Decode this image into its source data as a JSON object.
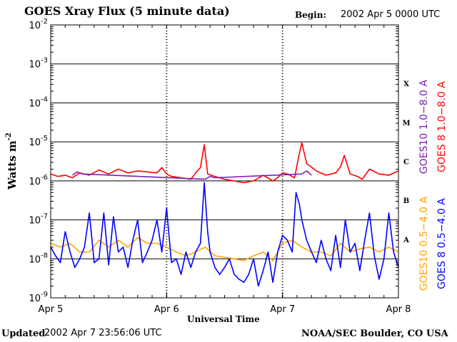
{
  "header": {
    "title": "GOES Xray Flux (5 minute data)",
    "begin_label": "Begin:",
    "begin_value": "2002 Apr 5 0000 UTC"
  },
  "footer": {
    "updated_label": "Updated",
    "updated_value": "2002 Apr  7 23:56:06 UTC",
    "credit": "NOAA/SEC Boulder, CO USA"
  },
  "colors": {
    "goes8_long": "#ff0000",
    "goes10_long": "#7a1fb0",
    "goes10_short": "#ffa500",
    "goes8_short": "#0000ff",
    "gridline": "#000000"
  },
  "chart_data": {
    "type": "line",
    "title": "GOES Xray Flux (5 minute data)",
    "xlabel": "Universal Time",
    "ylabel": "Watts m",
    "ylabel_exponent": "-2",
    "y_scale": "log",
    "ylim": [
      1e-09,
      0.01
    ],
    "y_ticks": [
      {
        "base": "10",
        "exp": "-2",
        "value": 0.01
      },
      {
        "base": "10",
        "exp": "-3",
        "value": 0.001
      },
      {
        "base": "10",
        "exp": "-4",
        "value": 0.0001
      },
      {
        "base": "10",
        "exp": "-5",
        "value": 1e-05
      },
      {
        "base": "10",
        "exp": "-6",
        "value": 1e-06
      },
      {
        "base": "10",
        "exp": "-7",
        "value": 1e-07
      },
      {
        "base": "10",
        "exp": "-8",
        "value": 1e-08
      },
      {
        "base": "10",
        "exp": "-9",
        "value": 1e-09
      }
    ],
    "xlim": [
      0,
      72
    ],
    "x_ticks": [
      {
        "label": "Apr 5",
        "hour": 0
      },
      {
        "label": "Apr 6",
        "hour": 24
      },
      {
        "label": "Apr 7",
        "hour": 48
      },
      {
        "label": "Apr 8",
        "hour": 72
      }
    ],
    "flare_classes": [
      {
        "label": "X",
        "low": 0.0001,
        "high": 0.001
      },
      {
        "label": "M",
        "low": 1e-05,
        "high": 0.0001
      },
      {
        "label": "C",
        "low": 1e-06,
        "high": 1e-05
      },
      {
        "label": "B",
        "low": 1e-07,
        "high": 1e-06
      },
      {
        "label": "A",
        "low": 1e-08,
        "high": 1e-07
      }
    ],
    "legend": [
      {
        "label": "GOES10 1.0−8.0 A",
        "color": "#7a1fb0",
        "position": "right"
      },
      {
        "label": "GOES 8 1.0−8.0 A",
        "color": "#ff0000",
        "position": "right"
      },
      {
        "label": "GOES10 0.5−4.0 A",
        "color": "#ffa500",
        "position": "right"
      },
      {
        "label": "GOES 8 0.5−4.0 A",
        "color": "#0000ff",
        "position": "right"
      }
    ],
    "series": [
      {
        "name": "GOES 8 1.0-8.0 A",
        "color": "#ff0000",
        "hours": [
          0,
          1.5,
          3,
          4.5,
          6,
          8,
          10,
          12,
          14,
          16,
          18,
          20,
          22,
          23,
          24,
          25,
          27,
          29,
          30,
          31,
          31.8,
          32.5,
          34,
          36,
          38,
          40,
          42,
          44,
          46,
          47,
          48,
          49,
          50.5,
          51.3,
          52,
          53,
          55,
          57,
          59,
          60,
          60.8,
          62,
          63.5,
          64.5,
          66,
          68,
          70,
          72
        ],
        "values": [
          1.5e-06,
          1.3e-06,
          1.4e-06,
          1.2e-06,
          1.6e-06,
          1.4e-06,
          1.9e-06,
          1.5e-06,
          2e-06,
          1.6e-06,
          1.8e-06,
          1.7e-06,
          1.6e-06,
          2.2e-06,
          1.5e-06,
          1.3e-06,
          1.2e-06,
          1.1e-06,
          1.6e-06,
          2.2e-06,
          8.5e-06,
          1.5e-06,
          1.3e-06,
          1.1e-06,
          1e-06,
          9e-07,
          1e-06,
          1.4e-06,
          1e-06,
          1.2e-06,
          1.6e-06,
          1.5e-06,
          1.2e-06,
          4e-06,
          9.5e-06,
          2.8e-06,
          1.8e-06,
          1.4e-06,
          1.6e-06,
          2.3e-06,
          4.5e-06,
          1.5e-06,
          1.3e-06,
          1.1e-06,
          2e-06,
          1.5e-06,
          1.4e-06,
          1.8e-06
        ]
      },
      {
        "name": "GOES10 1.0-8.0 A",
        "color": "#7a1fb0",
        "hours": [
          4.5,
          5.5,
          6.5,
          32,
          33,
          34,
          52,
          53,
          54
        ],
        "values": [
          1.4e-06,
          1.7e-06,
          1.5e-06,
          1.1e-06,
          1.3e-06,
          1.2e-06,
          1.5e-06,
          1.8e-06,
          1.4e-06
        ]
      },
      {
        "name": "GOES10 0.5-4.0 A",
        "color": "#ffa500",
        "hours": [
          0,
          2,
          4,
          6,
          8,
          10,
          12,
          14,
          16,
          18,
          20,
          22,
          24,
          26,
          28,
          30,
          32,
          34,
          36,
          38,
          40,
          42,
          44,
          46,
          48,
          50,
          52,
          54,
          56,
          58,
          60,
          62,
          64,
          66,
          68,
          70,
          72
        ],
        "values": [
          2.5e-08,
          2e-08,
          2.5e-08,
          1.5e-08,
          1.5e-08,
          3e-08,
          2e-08,
          3e-08,
          2e-08,
          3.5e-08,
          2.5e-08,
          2.5e-08,
          2e-08,
          1.5e-08,
          1.2e-08,
          1.5e-08,
          2e-08,
          1.2e-08,
          1.1e-08,
          1e-08,
          9e-09,
          1.2e-08,
          1.5e-08,
          9e-09,
          2.5e-08,
          3e-08,
          2e-08,
          1.5e-08,
          1.5e-08,
          1.2e-08,
          2.5e-08,
          1.5e-08,
          1.8e-08,
          2e-08,
          1.5e-08,
          2e-08,
          1.5e-08
        ]
      },
      {
        "name": "GOES 8 0.5-4.0 A",
        "color": "#0000ff",
        "hours": [
          0,
          1,
          2,
          3,
          4,
          5,
          6,
          7,
          8,
          9,
          10,
          11,
          12,
          13,
          14,
          15,
          16,
          17,
          18,
          19,
          20,
          21,
          22,
          23,
          24,
          25,
          26,
          27,
          28,
          29,
          30,
          31,
          31.8,
          32.5,
          33,
          34,
          35,
          36,
          37,
          38,
          39,
          40,
          41,
          42,
          43,
          44,
          45,
          46,
          47,
          48,
          49,
          50,
          50.8,
          51.5,
          52,
          53,
          54,
          55,
          56,
          57,
          58,
          59,
          60,
          61,
          62,
          63,
          64,
          65,
          66,
          67,
          68,
          69,
          70,
          71,
          72
        ],
        "values": [
          2e-08,
          1.2e-08,
          8e-09,
          5e-08,
          1.5e-08,
          6e-09,
          1e-08,
          2e-08,
          1.5e-07,
          8e-09,
          1e-08,
          1.5e-07,
          7e-09,
          1.2e-07,
          1.5e-08,
          2e-08,
          6e-09,
          3e-08,
          1e-07,
          8e-09,
          1.5e-08,
          3e-08,
          1e-07,
          1.5e-08,
          2e-07,
          8e-09,
          1e-08,
          4e-09,
          1.5e-08,
          6e-09,
          1.5e-08,
          2.5e-08,
          9e-07,
          5e-08,
          1.5e-08,
          6e-09,
          4e-09,
          6e-09,
          1e-08,
          4e-09,
          3e-09,
          2.5e-09,
          4e-09,
          1e-08,
          2e-09,
          5e-09,
          1.5e-08,
          2.5e-09,
          1.5e-08,
          4e-08,
          3e-08,
          1.5e-08,
          5e-07,
          2.5e-07,
          1e-07,
          3e-08,
          1.5e-08,
          8e-09,
          3e-08,
          1e-08,
          5e-09,
          4e-08,
          6e-09,
          1e-07,
          1.5e-08,
          2.5e-08,
          5e-09,
          3e-08,
          1.5e-07,
          1.2e-08,
          3e-09,
          1e-08,
          1.5e-07,
          1.5e-08,
          6e-09
        ]
      }
    ]
  }
}
